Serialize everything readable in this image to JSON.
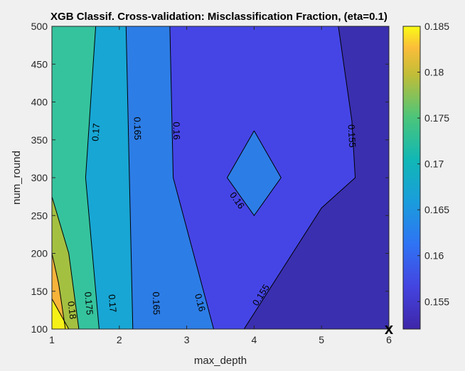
{
  "chart_data": {
    "type": "contour",
    "title": "XGB Classif. Cross-validation: Misclassification Fraction, (eta=0.1)",
    "xlabel": "max_depth",
    "ylabel": "num_round",
    "xlim": [
      1,
      6
    ],
    "ylim": [
      100,
      500
    ],
    "x_ticks": [
      1,
      2,
      3,
      4,
      5,
      6
    ],
    "y_ticks": [
      100,
      150,
      200,
      250,
      300,
      350,
      400,
      450,
      500
    ],
    "x_tick_labels": [
      "1",
      "2",
      "3",
      "4",
      "5",
      "6"
    ],
    "y_tick_labels": [
      "100",
      "150",
      "200",
      "250",
      "300",
      "350",
      "400",
      "450",
      "500"
    ],
    "colorbar": {
      "clim": [
        0.152,
        0.185
      ],
      "ticks": [
        0.155,
        0.16,
        0.165,
        0.17,
        0.175,
        0.18,
        0.185
      ],
      "tick_labels": [
        "0.155",
        "0.16",
        "0.165",
        "0.17",
        "0.175",
        "0.18",
        "0.185"
      ],
      "colormap": "parula"
    },
    "contour_levels": [
      0.155,
      0.16,
      0.165,
      0.17,
      0.175,
      0.18
    ],
    "fill_colors": {
      "below_0.155": "#3a2fae",
      "0.155_0.16": "#4545e6",
      "0.16_0.165": "#2d7de6",
      "0.165_0.17": "#18a6d4",
      "0.17_0.175": "#35c39d",
      "0.175_0.18": "#a4c041",
      "0.18_0.185": "#f7b33a",
      "above_0.185": "#f5f018"
    },
    "contours": [
      {
        "level": 0.18,
        "points": [
          [
            1.0,
            200
          ],
          [
            1.1,
            160
          ],
          [
            1.2,
            100
          ]
        ]
      },
      {
        "level": 0.175,
        "points": [
          [
            1.0,
            140
          ],
          [
            1.25,
            100
          ]
        ]
      },
      {
        "level": 0.175,
        "points": [
          [
            1.0,
            275
          ],
          [
            1.25,
            200
          ],
          [
            1.4,
            100
          ]
        ]
      },
      {
        "level": 0.17,
        "points": [
          [
            1.65,
            500
          ],
          [
            1.5,
            300
          ],
          [
            1.7,
            100
          ]
        ]
      },
      {
        "level": 0.165,
        "points": [
          [
            2.1,
            500
          ],
          [
            2.15,
            300
          ],
          [
            2.2,
            100
          ]
        ]
      },
      {
        "level": 0.16,
        "points": [
          [
            2.75,
            500
          ],
          [
            2.8,
            300
          ],
          [
            3.4,
            100
          ]
        ]
      },
      {
        "level": 0.16,
        "points": [
          [
            4.0,
            362
          ],
          [
            4.4,
            300
          ],
          [
            4.0,
            250
          ],
          [
            3.6,
            300
          ],
          [
            4.0,
            362
          ]
        ]
      },
      {
        "level": 0.155,
        "points": [
          [
            5.25,
            500
          ],
          [
            5.45,
            375
          ],
          [
            5.5,
            300
          ],
          [
            5.0,
            260
          ],
          [
            3.85,
            100
          ]
        ]
      }
    ],
    "contour_labels": [
      {
        "text": "0.18",
        "x": 1.3,
        "y": 125
      },
      {
        "text": "0.175",
        "x": 1.55,
        "y": 134
      },
      {
        "text": "0.17",
        "x": 1.9,
        "y": 134
      },
      {
        "text": "0.165",
        "x": 2.55,
        "y": 134
      },
      {
        "text": "0.16",
        "x": 3.2,
        "y": 135
      },
      {
        "text": "0.155",
        "x": 4.1,
        "y": 145
      },
      {
        "text": "0.17",
        "x": 1.65,
        "y": 360
      },
      {
        "text": "0.165",
        "x": 2.27,
        "y": 365
      },
      {
        "text": "0.16",
        "x": 2.85,
        "y": 362
      },
      {
        "text": "0.16",
        "x": 3.75,
        "y": 270
      },
      {
        "text": "0.155",
        "x": 5.45,
        "y": 355
      }
    ],
    "marker": {
      "text": "x",
      "x": 6,
      "y": 100
    }
  }
}
